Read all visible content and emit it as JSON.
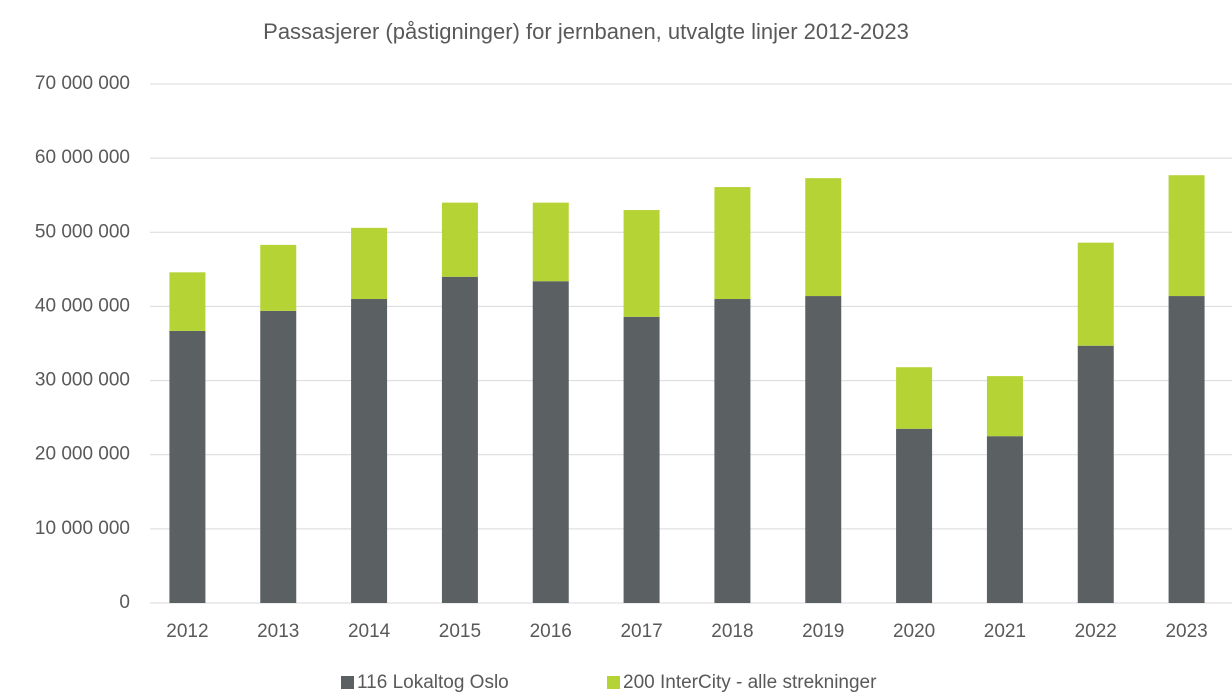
{
  "chart_data": {
    "type": "stacked_bar",
    "title": "Passasjerer (påstigninger) for jernbanen, utvalgte linjer 2012-2023",
    "categories": [
      "2012",
      "2013",
      "2014",
      "2015",
      "2016",
      "2017",
      "2018",
      "2019",
      "2020",
      "2021",
      "2022",
      "2023"
    ],
    "series": [
      {
        "name": "116 Lokaltog Oslo",
        "color": "#5b6063",
        "values": [
          36700000,
          39400000,
          41000000,
          44000000,
          43400000,
          38600000,
          41000000,
          41400000,
          23500000,
          22500000,
          34700000,
          41400000
        ]
      },
      {
        "name": "200 InterCity - alle strekninger",
        "color": "#b5d334",
        "values": [
          7900000,
          8900000,
          9600000,
          10000000,
          10600000,
          14400000,
          15100000,
          15900000,
          8300000,
          8100000,
          13900000,
          16300000
        ]
      }
    ],
    "ylim": [
      0,
      70000000
    ],
    "yticks": [
      0,
      {
        "value": 10000000,
        "label": "10 000 000"
      },
      {
        "value": 20000000,
        "label": "20 000 000"
      },
      {
        "value": 30000000,
        "label": "30 000 000"
      },
      {
        "value": 40000000,
        "label": "40 000 000"
      },
      {
        "value": 50000000,
        "label": "50 000 000"
      },
      {
        "value": 60000000,
        "label": "60 000 000"
      },
      {
        "value": 70000000,
        "label": "70 000 000"
      }
    ],
    "grid": true,
    "legend": "bottom"
  }
}
